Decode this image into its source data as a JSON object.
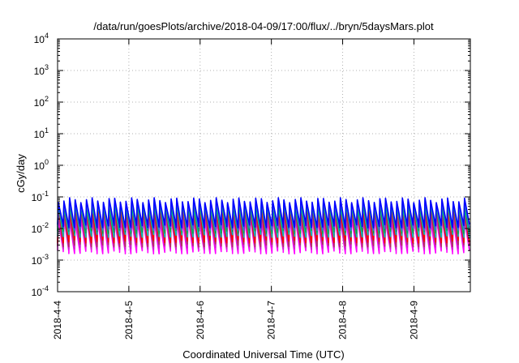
{
  "chart_data": {
    "type": "line",
    "title": "/data/run/goesPlots/archive/2018-04-09/17:00/flux/../bryn/5daysMars.plot",
    "xlabel": "Coordinated Universal Time (UTC)",
    "ylabel": "cGy/day",
    "yscale": "log",
    "ylim": [
      0.0001,
      10000
    ],
    "xlim": [
      "2018-04-04 00:00",
      "2018-04-09 19:00"
    ],
    "grid": true,
    "legend": "none",
    "y_ticks": [
      {
        "value": 0.0001,
        "base": "10",
        "exp": "-4"
      },
      {
        "value": 0.001,
        "base": "10",
        "exp": "-3"
      },
      {
        "value": 0.01,
        "base": "10",
        "exp": "-2"
      },
      {
        "value": 0.1,
        "base": "10",
        "exp": "-1"
      },
      {
        "value": 1,
        "base": "10",
        "exp": "0"
      },
      {
        "value": 10,
        "base": "10",
        "exp": "1"
      },
      {
        "value": 100,
        "base": "10",
        "exp": "2"
      },
      {
        "value": 1000,
        "base": "10",
        "exp": "3"
      },
      {
        "value": 10000,
        "base": "10",
        "exp": "4"
      }
    ],
    "x_ticks": [
      "2018-4-4",
      "2018-4-5",
      "2018-4-6",
      "2018-4-7",
      "2018-4-8",
      "2018-4-9"
    ],
    "cycle_period_hours": 1.9,
    "cycle_count": 73,
    "series": [
      {
        "color": "#ff00ff",
        "peak": 0.02,
        "trough": 0.0018
      },
      {
        "color": "#cc22cc",
        "peak": 0.025,
        "trough": 0.0025
      },
      {
        "color": "#b03060",
        "peak": 0.035,
        "trough": 0.003
      },
      {
        "color": "#ff0000",
        "peak": 0.05,
        "trough": 0.004
      },
      {
        "color": "#00bfbf",
        "peak": 0.055,
        "trough": 0.006
      },
      {
        "color": "#00aa55",
        "peak": 0.06,
        "trough": 0.008
      },
      {
        "color": "#4169e1",
        "peak": 0.07,
        "trough": 0.01
      },
      {
        "color": "#0000ff",
        "peak": 0.08,
        "trough": 0.012
      }
    ]
  }
}
